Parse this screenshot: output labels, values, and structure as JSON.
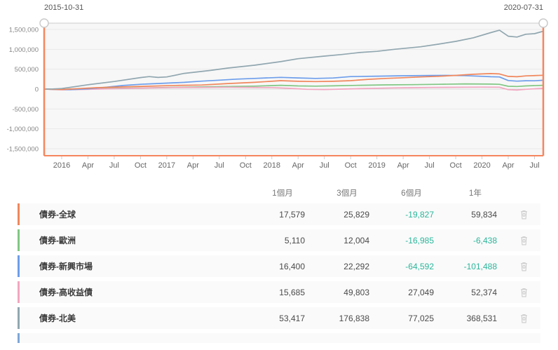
{
  "slider": {
    "start_date": "2015-10-31",
    "end_date": "2020-07-31",
    "accent_color": "#f5865e"
  },
  "chart_data": {
    "type": "line",
    "title": "",
    "grid": true,
    "plot_bg": "#f7f7f7",
    "ylim": [
      -1700000,
      1680000
    ],
    "y_ticks": [
      {
        "label": "1,500,000",
        "value": 1500000
      },
      {
        "label": "1,000,000",
        "value": 1000000
      },
      {
        "label": "500,000",
        "value": 500000
      },
      {
        "label": "0",
        "value": 0
      },
      {
        "label": "-500,000",
        "value": -500000
      },
      {
        "label": "-1,000,000",
        "value": -1000000
      },
      {
        "label": "-1,500,000",
        "value": -1500000
      }
    ],
    "x_domain_months": 57,
    "x_ticks": [
      {
        "label": "2016",
        "month": 2
      },
      {
        "label": "Apr",
        "month": 5
      },
      {
        "label": "Jul",
        "month": 8
      },
      {
        "label": "Oct",
        "month": 11
      },
      {
        "label": "2017",
        "month": 14
      },
      {
        "label": "Apr",
        "month": 17
      },
      {
        "label": "Jul",
        "month": 20
      },
      {
        "label": "Oct",
        "month": 23
      },
      {
        "label": "2018",
        "month": 26
      },
      {
        "label": "Apr",
        "month": 29
      },
      {
        "label": "Jul",
        "month": 32
      },
      {
        "label": "Oct",
        "month": 35
      },
      {
        "label": "2019",
        "month": 38
      },
      {
        "label": "Apr",
        "month": 41
      },
      {
        "label": "Jul",
        "month": 44
      },
      {
        "label": "Oct",
        "month": 47
      },
      {
        "label": "2020",
        "month": 50
      },
      {
        "label": "Apr",
        "month": 53
      },
      {
        "label": "Jul",
        "month": 56
      }
    ],
    "series": [
      {
        "name": "債券-全球",
        "color": "#f0875c",
        "points": [
          [
            0,
            0
          ],
          [
            2,
            -10000
          ],
          [
            4,
            12000
          ],
          [
            6,
            35000
          ],
          [
            9,
            55000
          ],
          [
            12,
            73000
          ],
          [
            15,
            92000
          ],
          [
            18,
            103000
          ],
          [
            21,
            140000
          ],
          [
            24,
            170000
          ],
          [
            27,
            212000
          ],
          [
            29,
            196000
          ],
          [
            31,
            188000
          ],
          [
            33,
            196000
          ],
          [
            35,
            212000
          ],
          [
            37,
            245000
          ],
          [
            39,
            268000
          ],
          [
            41,
            285000
          ],
          [
            43,
            306000
          ],
          [
            45,
            322000
          ],
          [
            47,
            345000
          ],
          [
            49,
            372000
          ],
          [
            51,
            390000
          ],
          [
            52,
            382000
          ],
          [
            53,
            320000
          ],
          [
            54,
            310000
          ],
          [
            55,
            332000
          ],
          [
            57,
            348000
          ]
        ]
      },
      {
        "name": "債券-歐洲",
        "color": "#81c784",
        "points": [
          [
            0,
            0
          ],
          [
            2,
            -8000
          ],
          [
            4,
            5000
          ],
          [
            6,
            12000
          ],
          [
            9,
            22000
          ],
          [
            12,
            32000
          ],
          [
            15,
            45000
          ],
          [
            18,
            55000
          ],
          [
            21,
            65000
          ],
          [
            24,
            75000
          ],
          [
            27,
            95000
          ],
          [
            29,
            80000
          ],
          [
            31,
            75000
          ],
          [
            33,
            82000
          ],
          [
            36,
            95000
          ],
          [
            39,
            105000
          ],
          [
            42,
            112000
          ],
          [
            45,
            120000
          ],
          [
            48,
            130000
          ],
          [
            51,
            125000
          ],
          [
            52,
            120000
          ],
          [
            53,
            70000
          ],
          [
            54,
            65000
          ],
          [
            55,
            80000
          ],
          [
            57,
            95000
          ]
        ]
      },
      {
        "name": "債券-新興市場",
        "color": "#6d9eeb",
        "points": [
          [
            0,
            0
          ],
          [
            2,
            -12000
          ],
          [
            3,
            -15000
          ],
          [
            5,
            5000
          ],
          [
            7,
            45000
          ],
          [
            9,
            90000
          ],
          [
            11,
            120000
          ],
          [
            12,
            130000
          ],
          [
            14,
            150000
          ],
          [
            16,
            170000
          ],
          [
            18,
            200000
          ],
          [
            20,
            225000
          ],
          [
            22,
            250000
          ],
          [
            24,
            268000
          ],
          [
            26,
            285000
          ],
          [
            27,
            295000
          ],
          [
            29,
            280000
          ],
          [
            31,
            268000
          ],
          [
            33,
            278000
          ],
          [
            35,
            315000
          ],
          [
            38,
            325000
          ],
          [
            41,
            335000
          ],
          [
            44,
            342000
          ],
          [
            46,
            345000
          ],
          [
            48,
            338000
          ],
          [
            50,
            322000
          ],
          [
            51,
            310000
          ],
          [
            52,
            305000
          ],
          [
            53,
            215000
          ],
          [
            54,
            200000
          ],
          [
            55,
            210000
          ],
          [
            56,
            208000
          ],
          [
            57,
            222000
          ]
        ]
      },
      {
        "name": "債券-高收益債",
        "color": "#f2a6c1",
        "points": [
          [
            0,
            0
          ],
          [
            2,
            -18000
          ],
          [
            4,
            -10000
          ],
          [
            6,
            0
          ],
          [
            9,
            15000
          ],
          [
            12,
            28000
          ],
          [
            15,
            38000
          ],
          [
            18,
            42000
          ],
          [
            21,
            48000
          ],
          [
            24,
            42000
          ],
          [
            26,
            38000
          ],
          [
            28,
            20000
          ],
          [
            30,
            -5000
          ],
          [
            32,
            -12000
          ],
          [
            34,
            0
          ],
          [
            36,
            10000
          ],
          [
            38,
            22000
          ],
          [
            40,
            30000
          ],
          [
            42,
            35000
          ],
          [
            44,
            40000
          ],
          [
            46,
            45000
          ],
          [
            48,
            48000
          ],
          [
            50,
            50000
          ],
          [
            52,
            48000
          ],
          [
            53,
            -15000
          ],
          [
            54,
            -25000
          ],
          [
            55,
            -5000
          ],
          [
            57,
            20000
          ]
        ]
      },
      {
        "name": "債券-北美",
        "color": "#91a7b0",
        "points": [
          [
            0,
            0
          ],
          [
            1,
            3000
          ],
          [
            2,
            15000
          ],
          [
            3,
            45000
          ],
          [
            5,
            110000
          ],
          [
            8,
            190000
          ],
          [
            11,
            290000
          ],
          [
            12,
            315000
          ],
          [
            13,
            293000
          ],
          [
            14,
            305000
          ],
          [
            16,
            395000
          ],
          [
            19,
            470000
          ],
          [
            21,
            530000
          ],
          [
            24,
            600000
          ],
          [
            27,
            690000
          ],
          [
            29,
            765000
          ],
          [
            32,
            830000
          ],
          [
            34,
            870000
          ],
          [
            36,
            920000
          ],
          [
            38,
            950000
          ],
          [
            40,
            1000000
          ],
          [
            43,
            1065000
          ],
          [
            45,
            1130000
          ],
          [
            47,
            1200000
          ],
          [
            49,
            1290000
          ],
          [
            51,
            1420000
          ],
          [
            52,
            1480000
          ],
          [
            53,
            1330000
          ],
          [
            54,
            1310000
          ],
          [
            55,
            1380000
          ],
          [
            56,
            1395000
          ],
          [
            57,
            1455000
          ]
        ]
      }
    ]
  },
  "table": {
    "columns": [
      "1個月",
      "3個月",
      "6個月",
      "1年"
    ],
    "negative_color": "#2ab69a",
    "rows": [
      {
        "name": "債券-全球",
        "color": "#f0875c",
        "values": [
          "17,579",
          "25,829",
          "-19,827",
          "59,834"
        ]
      },
      {
        "name": "債券-歐洲",
        "color": "#81c784",
        "values": [
          "5,110",
          "12,004",
          "-16,985",
          "-6,438"
        ]
      },
      {
        "name": "債券-新興市場",
        "color": "#6d9eeb",
        "values": [
          "16,400",
          "22,292",
          "-64,592",
          "-101,488"
        ]
      },
      {
        "name": "債券-高收益債",
        "color": "#f2a6c1",
        "values": [
          "15,685",
          "49,803",
          "27,049",
          "52,374"
        ]
      },
      {
        "name": "債券-北美",
        "color": "#91a7b0",
        "values": [
          "53,417",
          "176,838",
          "77,025",
          "368,531"
        ]
      }
    ],
    "partial_row_color": "#7da7d8"
  }
}
